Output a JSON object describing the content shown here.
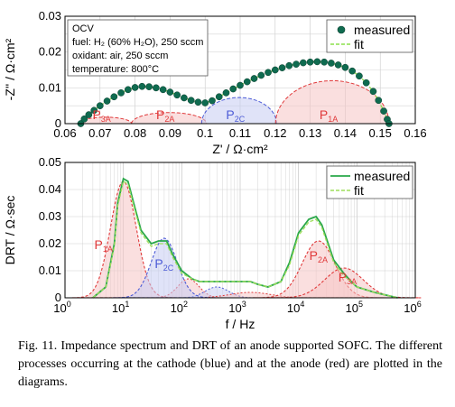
{
  "caption": "Fig. 11.   Impedance spectrum and DRT of an anode supported SOFC. The different processes occurring at the cathode (blue) and at the anode (red) are plotted in the diagrams.",
  "colors": {
    "measured_marker": "#0f6b50",
    "fit_line": "#8be04c",
    "anode": "#e0393a",
    "anode_fill": "#f6c4c4",
    "cathode": "#4c5bd6",
    "cathode_fill": "#c6ccf2",
    "drt_measured": "#2aa84a",
    "drt_fit": "#9ede5a"
  },
  "chart_data": [
    {
      "type": "scatter",
      "xlabel": "Z' / Ω·cm²",
      "ylabel": "-Z'' / Ω·cm²",
      "xlim": [
        0.06,
        0.16
      ],
      "ylim": [
        0,
        0.03
      ],
      "xticks": [
        "0.06",
        "0.07",
        "0.08",
        "0.09",
        "0.1",
        "0.11",
        "0.12",
        "0.13",
        "0.14",
        "0.15",
        "0.16"
      ],
      "yticks": [
        "0",
        "0.01",
        "0.02",
        "0.03"
      ],
      "grid": true,
      "legend_position": "top-right",
      "legend": [
        "measured",
        "fit"
      ],
      "annotation": {
        "line1": "OCV",
        "line2": "fuel: H₂ (60% H₂O), 250 sccm",
        "line3": "oxidant: air, 250 sccm",
        "line4": "temperature: 800°C"
      },
      "x": [
        0.0645,
        0.0655,
        0.0668,
        0.0683,
        0.07,
        0.072,
        0.074,
        0.076,
        0.078,
        0.08,
        0.082,
        0.084,
        0.086,
        0.088,
        0.09,
        0.092,
        0.094,
        0.096,
        0.098,
        0.1,
        0.102,
        0.104,
        0.106,
        0.108,
        0.11,
        0.112,
        0.114,
        0.116,
        0.118,
        0.12,
        0.122,
        0.124,
        0.126,
        0.128,
        0.13,
        0.132,
        0.134,
        0.136,
        0.138,
        0.14,
        0.142,
        0.144,
        0.146,
        0.148,
        0.1495,
        0.151,
        0.152,
        0.1525
      ],
      "y": [
        0.0,
        0.0013,
        0.0025,
        0.0037,
        0.005,
        0.0063,
        0.0075,
        0.0086,
        0.0095,
        0.0101,
        0.0104,
        0.0103,
        0.01,
        0.0095,
        0.0088,
        0.008,
        0.0072,
        0.0065,
        0.006,
        0.0058,
        0.0064,
        0.0075,
        0.0086,
        0.0097,
        0.0107,
        0.0117,
        0.0126,
        0.0135,
        0.0143,
        0.015,
        0.0156,
        0.0162,
        0.0166,
        0.017,
        0.0172,
        0.0173,
        0.0172,
        0.0169,
        0.0164,
        0.0157,
        0.0147,
        0.0133,
        0.0114,
        0.009,
        0.0065,
        0.0035,
        0.0012,
        0.0
      ],
      "processes": [
        {
          "name": "P",
          "sub": "3A",
          "center": 0.0715,
          "radius": 0.0075,
          "peak": 0.0018,
          "color": "anode"
        },
        {
          "name": "P",
          "sub": "2A",
          "center": 0.0897,
          "radius": 0.0107,
          "peak": 0.0031,
          "color": "anode"
        },
        {
          "name": "P",
          "sub": "2C",
          "center": 0.1097,
          "radius": 0.0107,
          "peak": 0.0073,
          "color": "cathode"
        },
        {
          "name": "P",
          "sub": "1A",
          "center": 0.1363,
          "radius": 0.0162,
          "peak": 0.012,
          "color": "anode"
        }
      ]
    },
    {
      "type": "line",
      "xscale": "log",
      "xlabel": "f / Hz",
      "ylabel": "DRT / Ω·sec",
      "xlim": [
        1,
        1000000
      ],
      "ylim": [
        0,
        0.05
      ],
      "xticks_base": [
        "10",
        "10",
        "10",
        "10",
        "10",
        "10",
        "10"
      ],
      "xticks_exp": [
        "0",
        "1",
        "2",
        "3",
        "4",
        "5",
        "6"
      ],
      "yticks": [
        "0",
        "0.01",
        "0.02",
        "0.03",
        "0.04",
        "0.05"
      ],
      "grid": true,
      "legend_position": "top-right",
      "legend": [
        "measured",
        "fit"
      ],
      "series": [
        {
          "name": "measured",
          "x": [
            3,
            5,
            7,
            8,
            10,
            12,
            15,
            20,
            30,
            40,
            55,
            70,
            100,
            150,
            200,
            300,
            500,
            1000,
            1500,
            2000,
            3000,
            5000,
            7000,
            10000,
            15000,
            20000,
            25000,
            30000,
            40000,
            60000,
            80000,
            100000,
            200000,
            500000
          ],
          "y": [
            0.0,
            0.004,
            0.02,
            0.035,
            0.044,
            0.043,
            0.035,
            0.025,
            0.02,
            0.021,
            0.021,
            0.016,
            0.01,
            0.007,
            0.006,
            0.006,
            0.006,
            0.006,
            0.006,
            0.005,
            0.004,
            0.006,
            0.013,
            0.024,
            0.029,
            0.03,
            0.027,
            0.022,
            0.014,
            0.009,
            0.006,
            0.004,
            0.002,
            0.0
          ]
        },
        {
          "name": "fit",
          "x": [
            3,
            5,
            7,
            8,
            10,
            12,
            15,
            20,
            30,
            40,
            55,
            70,
            100,
            150,
            200,
            300,
            500,
            1000,
            1500,
            2000,
            3000,
            5000,
            7000,
            10000,
            15000,
            20000,
            25000,
            30000,
            40000,
            60000,
            80000,
            100000,
            200000,
            500000
          ],
          "y": [
            0.0,
            0.004,
            0.019,
            0.034,
            0.043,
            0.042,
            0.034,
            0.024,
            0.019,
            0.02,
            0.02,
            0.015,
            0.009,
            0.007,
            0.006,
            0.006,
            0.006,
            0.006,
            0.006,
            0.005,
            0.004,
            0.006,
            0.012,
            0.023,
            0.028,
            0.029,
            0.026,
            0.021,
            0.013,
            0.008,
            0.006,
            0.004,
            0.002,
            0.0
          ]
        }
      ],
      "processes": [
        {
          "name": "P",
          "sub": "1A",
          "peak_f": 10,
          "peak": 0.043,
          "width": 0.22,
          "color": "anode"
        },
        {
          "name": "P",
          "sub": "2C",
          "peak_f": 50,
          "peak": 0.022,
          "width": 0.22,
          "color": "cathode"
        },
        {
          "name": "P",
          "sub": "2A",
          "peak_f": 22000,
          "peak": 0.021,
          "width": 0.28,
          "color": "anode"
        },
        {
          "name": "P",
          "sub": "3A",
          "peak_f": 60000,
          "peak": 0.011,
          "width": 0.33,
          "color": "anode"
        }
      ],
      "minor_processes": [
        {
          "peak_f": 130,
          "peak": 0.007,
          "width": 0.18,
          "color": "anode"
        },
        {
          "peak_f": 400,
          "peak": 0.004,
          "width": 0.2,
          "color": "cathode"
        },
        {
          "peak_f": 1500,
          "peak": 0.002,
          "width": 0.35,
          "color": "anode"
        }
      ]
    }
  ]
}
